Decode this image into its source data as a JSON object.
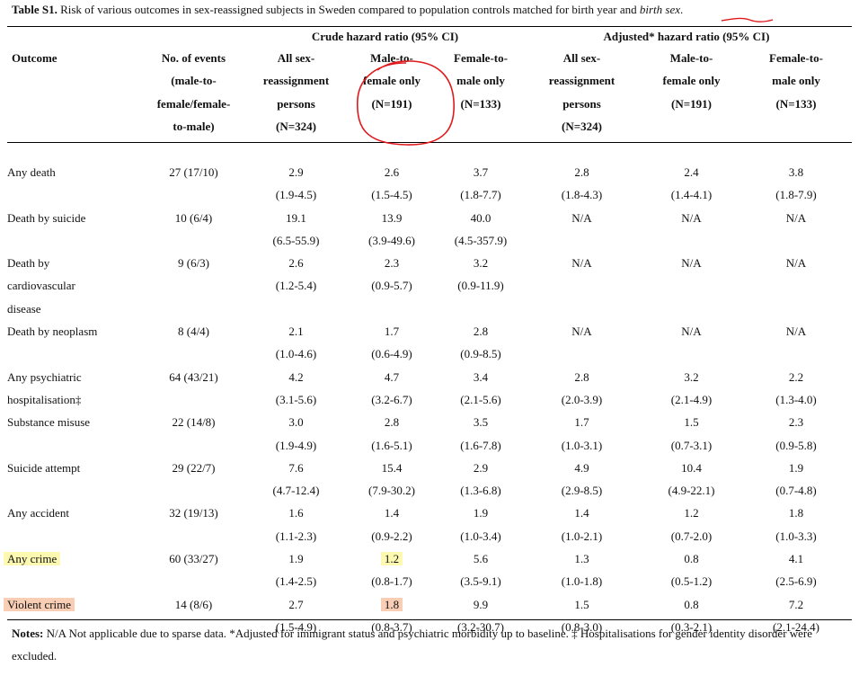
{
  "caption": {
    "label": "Table S1.",
    "text": " Risk of various outcomes in sex-reassigned subjects in Sweden compared to population controls matched for birth year and ",
    "italic": "birth sex",
    "end": "."
  },
  "groups": {
    "crude": "Crude hazard ratio (95% CI)",
    "adjusted": "Adjusted* hazard ratio (95% CI)"
  },
  "headers": {
    "outcome": "Outcome",
    "events": [
      "No. of events",
      "(male-to-",
      "female/female-",
      "to-male)"
    ],
    "crude_all": [
      "All sex-",
      "reassignment",
      "persons",
      "(N=324)"
    ],
    "crude_mtf": [
      "Male-to-",
      "female only",
      "(N=191)"
    ],
    "crude_ftm": [
      "Female-to-",
      "male only",
      "(N=133)"
    ],
    "adj_all": [
      "All sex-",
      "reassignment",
      "persons",
      "(N=324)"
    ],
    "adj_mtf": [
      "Male-to-",
      "female only",
      "(N=191)"
    ],
    "adj_ftm": [
      "Female-to-",
      "male only",
      "(N=133)"
    ]
  },
  "rows": [
    {
      "outcome": [
        "Any death"
      ],
      "indent": false,
      "events": "27 (17/10)",
      "hr": [
        "2.9",
        "2.6",
        "3.7",
        "2.8",
        "2.4",
        "3.8"
      ],
      "ci": [
        "(1.9-4.5)",
        "(1.5-4.5)",
        "(1.8-7.7)",
        "(1.8-4.3)",
        "(1.4-4.1)",
        "(1.8-7.9)"
      ]
    },
    {
      "outcome": [
        "Death by suicide"
      ],
      "indent": true,
      "events": "10 (6/4)",
      "hr": [
        "19.1",
        "13.9",
        "40.0",
        "N/A",
        "N/A",
        "N/A"
      ],
      "ci": [
        "(6.5-55.9)",
        "(3.9-49.6)",
        "(4.5-357.9)",
        "",
        "",
        ""
      ]
    },
    {
      "outcome": [
        "Death by",
        "cardiovascular",
        "disease"
      ],
      "indent": true,
      "events": "9 (6/3)",
      "hr": [
        "2.6",
        "2.3",
        "3.2",
        "N/A",
        "N/A",
        "N/A"
      ],
      "ci": [
        "(1.2-5.4)",
        "(0.9-5.7)",
        "(0.9-11.9)",
        "",
        "",
        ""
      ]
    },
    {
      "outcome": [
        "Death by neoplasm"
      ],
      "indent": true,
      "events": "8 (4/4)",
      "hr": [
        "2.1",
        "1.7",
        "2.8",
        "N/A",
        "N/A",
        "N/A"
      ],
      "ci": [
        "(1.0-4.6)",
        "(0.6-4.9)",
        "(0.9-8.5)",
        "",
        "",
        ""
      ]
    },
    {
      "outcome": [
        "Any psychiatric",
        "hospitalisation‡"
      ],
      "indent": false,
      "events": "64 (43/21)",
      "hr": [
        "4.2",
        "4.7",
        "3.4",
        "2.8",
        "3.2",
        "2.2"
      ],
      "ci": [
        "(3.1-5.6)",
        "(3.2-6.7)",
        "(2.1-5.6)",
        "(2.0-3.9)",
        "(2.1-4.9)",
        "(1.3-4.0)"
      ]
    },
    {
      "outcome": [
        "Substance misuse"
      ],
      "indent": true,
      "events": "22 (14/8)",
      "hr": [
        "3.0",
        "2.8",
        "3.5",
        "1.7",
        "1.5",
        "2.3"
      ],
      "ci": [
        "(1.9-4.9)",
        "(1.6-5.1)",
        "(1.6-7.8)",
        "(1.0-3.1)",
        "(0.7-3.1)",
        "(0.9-5.8)"
      ]
    },
    {
      "outcome": [
        "Suicide attempt"
      ],
      "indent": false,
      "events": "29 (22/7)",
      "hr": [
        "7.6",
        "15.4",
        "2.9",
        "4.9",
        "10.4",
        "1.9"
      ],
      "ci": [
        "(4.7-12.4)",
        "(7.9-30.2)",
        "(1.3-6.8)",
        "(2.9-8.5)",
        "(4.9-22.1)",
        "(0.7-4.8)"
      ]
    },
    {
      "outcome": [
        "Any accident"
      ],
      "indent": false,
      "events": "32 (19/13)",
      "hr": [
        "1.6",
        "1.4",
        "1.9",
        "1.4",
        "1.2",
        "1.8"
      ],
      "ci": [
        "(1.1-2.3)",
        "(0.9-2.2)",
        "(1.0-3.4)",
        "(1.0-2.1)",
        "(0.7-2.0)",
        "(1.0-3.3)"
      ]
    },
    {
      "outcome": [
        "Any crime"
      ],
      "indent": false,
      "events": "60 (33/27)",
      "highlight": "yellow",
      "hr": [
        "1.9",
        "1.2",
        "5.6",
        "1.3",
        "0.8",
        "4.1"
      ],
      "ci": [
        "(1.4-2.5)",
        "(0.8-1.7)",
        "(3.5-9.1)",
        "(1.0-1.8)",
        "(0.5-1.2)",
        "(2.5-6.9)"
      ]
    },
    {
      "outcome": [
        "Violent crime"
      ],
      "indent": true,
      "events": "14 (8/6)",
      "highlight": "orange",
      "hr": [
        "2.7",
        "1.8",
        "9.9",
        "1.5",
        "0.8",
        "7.2"
      ],
      "ci": [
        "(1.5-4.9)",
        "(0.8-3.7)",
        "(3.2-30.7)",
        "(0.8-3.0)",
        "(0.3-2.1)",
        "(2.1-24.4)"
      ]
    }
  ],
  "notes": {
    "label": "Notes:",
    "text": " N/A Not applicable due to sparse data. *Adjusted for immigrant status and psychiatric morbidity up to baseline. ‡ Hospitalisations for gender identity disorder were excluded."
  },
  "colors": {
    "highlight_yellow": "#fdf9b1",
    "highlight_orange": "#f8cfb5",
    "annotation_red": "#e0191b"
  }
}
